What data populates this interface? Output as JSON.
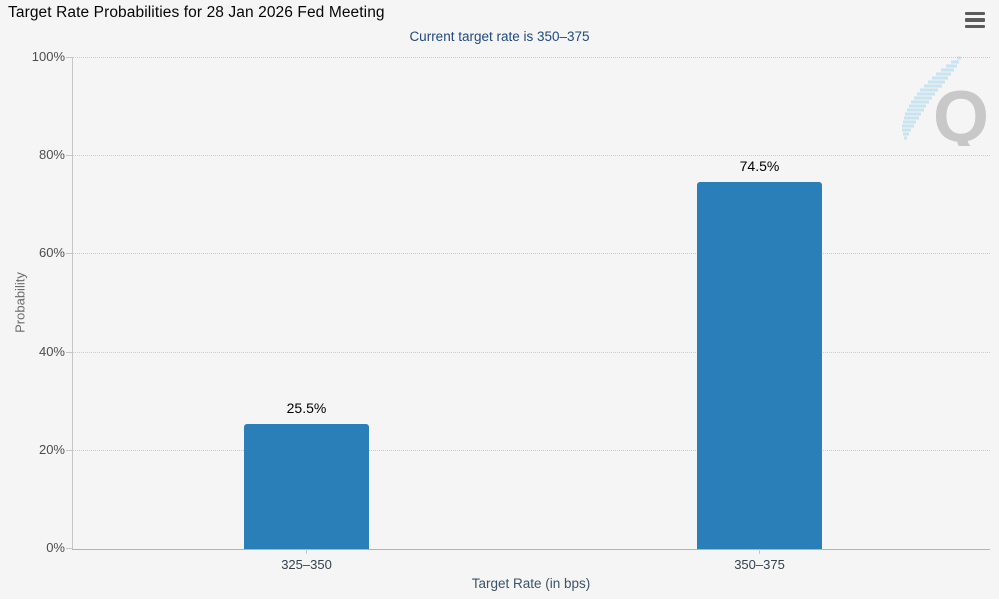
{
  "header": {
    "title": "Target Rate Probabilities for 28 Jan 2026 Fed Meeting",
    "menu_icon": "hamburger-menu-icon"
  },
  "subtitle": "Current target rate is 350–375",
  "watermark": {
    "letter": "Q"
  },
  "colors": {
    "bar": "#2b7fb8",
    "background": "#f5f5f5",
    "subtitle_text": "#21497f",
    "watermark_blue": "#bfe2f0",
    "watermark_gray": "#c8c8c8"
  },
  "chart_data": {
    "type": "bar",
    "title": "Target Rate Probabilities for 28 Jan 2026 Fed Meeting",
    "subtitle": "Current target rate is 350–375",
    "categories": [
      "325–350",
      "350–375"
    ],
    "values": [
      25.5,
      74.5
    ],
    "value_labels": [
      "25.5%",
      "74.5%"
    ],
    "xlabel": "Target Rate (in bps)",
    "ylabel": "Probability",
    "ylim": [
      0,
      100
    ],
    "yticks": [
      "0%",
      "20%",
      "40%",
      "60%",
      "80%",
      "100%"
    ],
    "grid": "horizontal-dotted",
    "legend": "none",
    "bar_color": "#2b7fb8"
  }
}
